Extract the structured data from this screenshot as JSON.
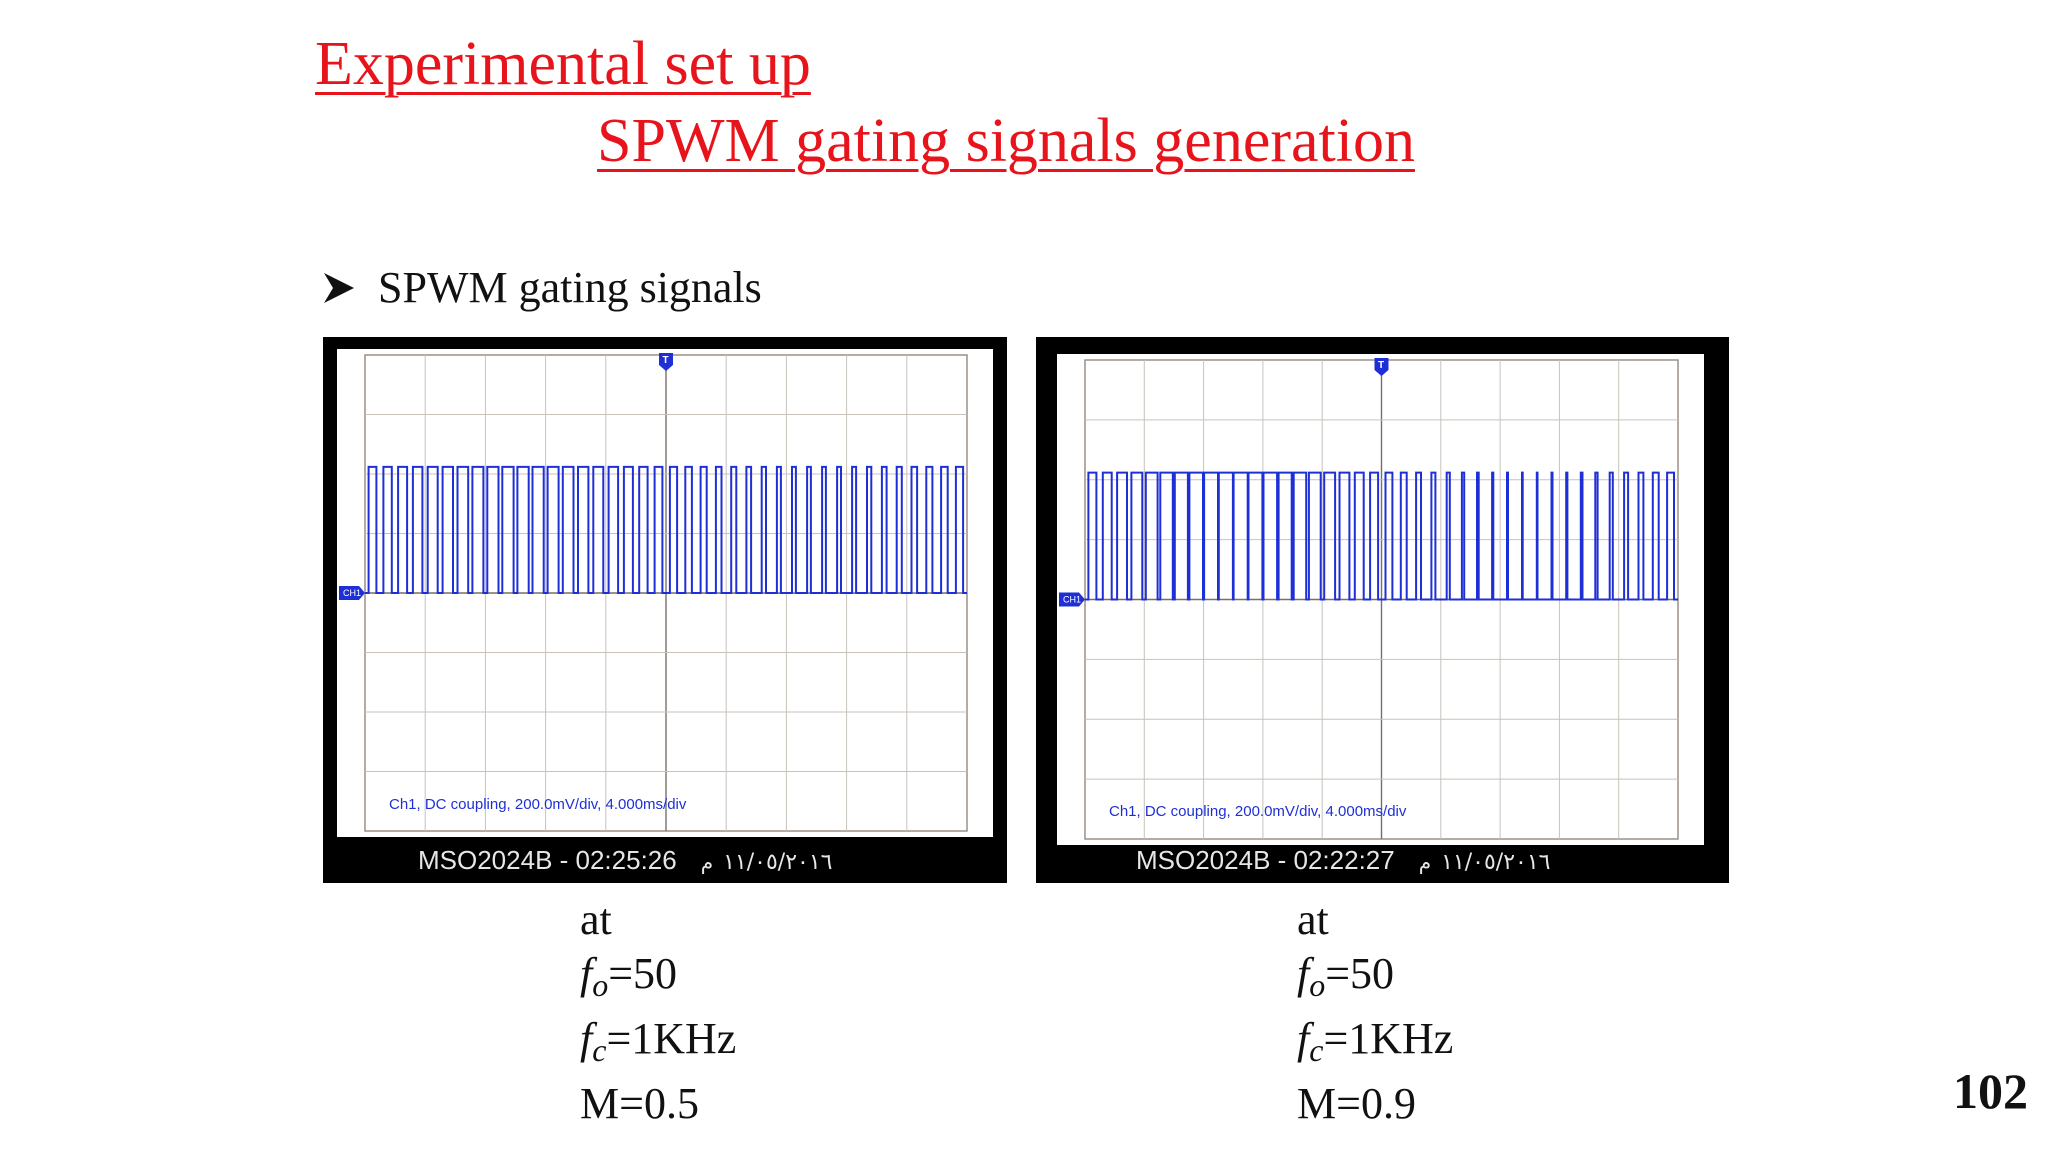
{
  "slide": {
    "title_line1": "Experimental set up",
    "title_line2": "SPWM gating signals generation",
    "bullet_text": "SPWM gating signals",
    "page_number": "102"
  },
  "colors": {
    "title": "#e8141b",
    "trace": "#1f2fd6",
    "grid": "#9a8f86",
    "scope_bezel": "#000000"
  },
  "scopes": [
    {
      "info_text": "Ch1, DC coupling, 200.0mV/div, 4.000ms/div",
      "channel_marker": "CH1",
      "trigger_marker": "T",
      "model_time": "MSO2024B - 02:25:26",
      "date": "١١/٠٥/٢٠١٦",
      "ampm": "م",
      "caption": {
        "at": "at",
        "f": "f",
        "o_sub": "o",
        "fo_val": "=50",
        "c_sub": "c",
        "fc_val": "=1KHz",
        "m_line": "M=0.5"
      },
      "modulation_index": 0.5,
      "pulse_count": 40
    },
    {
      "info_text": "Ch1, DC coupling, 200.0mV/div, 4.000ms/div",
      "channel_marker": "CH1",
      "trigger_marker": "T",
      "model_time": "MSO2024B - 02:22:27",
      "date": "١١/٠٥/٢٠١٦",
      "ampm": "م",
      "caption": {
        "at": "at",
        "f": "f",
        "o_sub": "o",
        "fo_val": "=50",
        "c_sub": "c",
        "fc_val": "=1KHz",
        "m_line": "M=0.9"
      },
      "modulation_index": 0.9,
      "pulse_count": 40
    }
  ]
}
